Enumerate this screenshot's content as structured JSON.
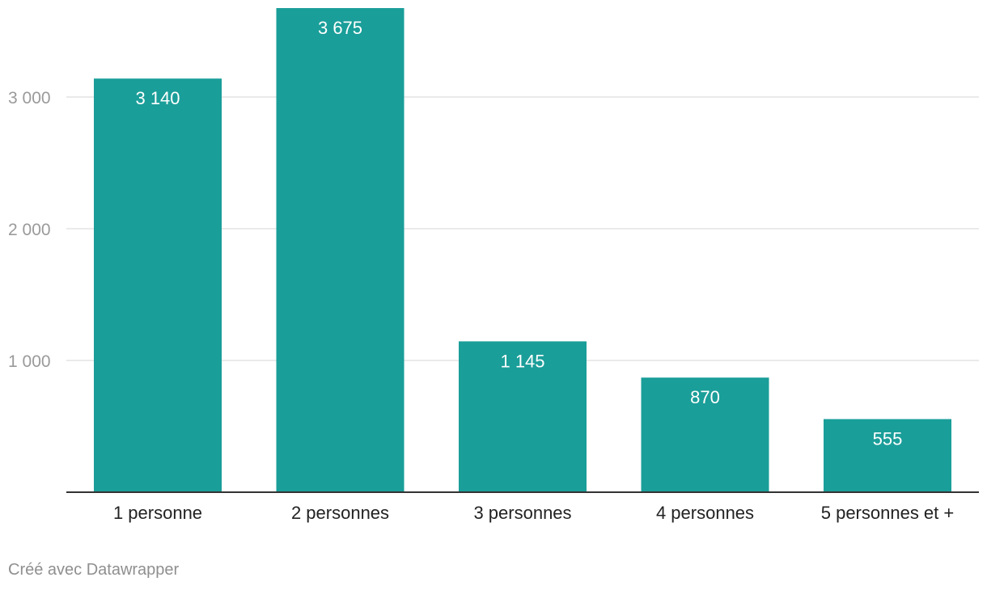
{
  "chart_data": {
    "type": "bar",
    "categories": [
      "1 personne",
      "2 personnes",
      "3 personnes",
      "4 personnes",
      "5 personnes et +"
    ],
    "values": [
      3140,
      3675,
      1145,
      870,
      555
    ],
    "value_labels": [
      "3 140",
      "3 675",
      "1 145",
      "870",
      "555"
    ],
    "y_ticks": [
      1000,
      2000,
      3000
    ],
    "y_tick_labels": [
      "1 000",
      "2 000",
      "3 000"
    ],
    "ylim": [
      0,
      3675
    ],
    "title": "",
    "xlabel": "",
    "ylabel": "",
    "grid": true,
    "colors": {
      "bar": "#1a9e99",
      "value_label": "#ffffff",
      "grid": "#e3e3e3",
      "axis": "#333333",
      "tick_label": "#9a9a9a",
      "category_label": "#222222"
    }
  },
  "footer": {
    "credit": "Créé avec Datawrapper"
  }
}
